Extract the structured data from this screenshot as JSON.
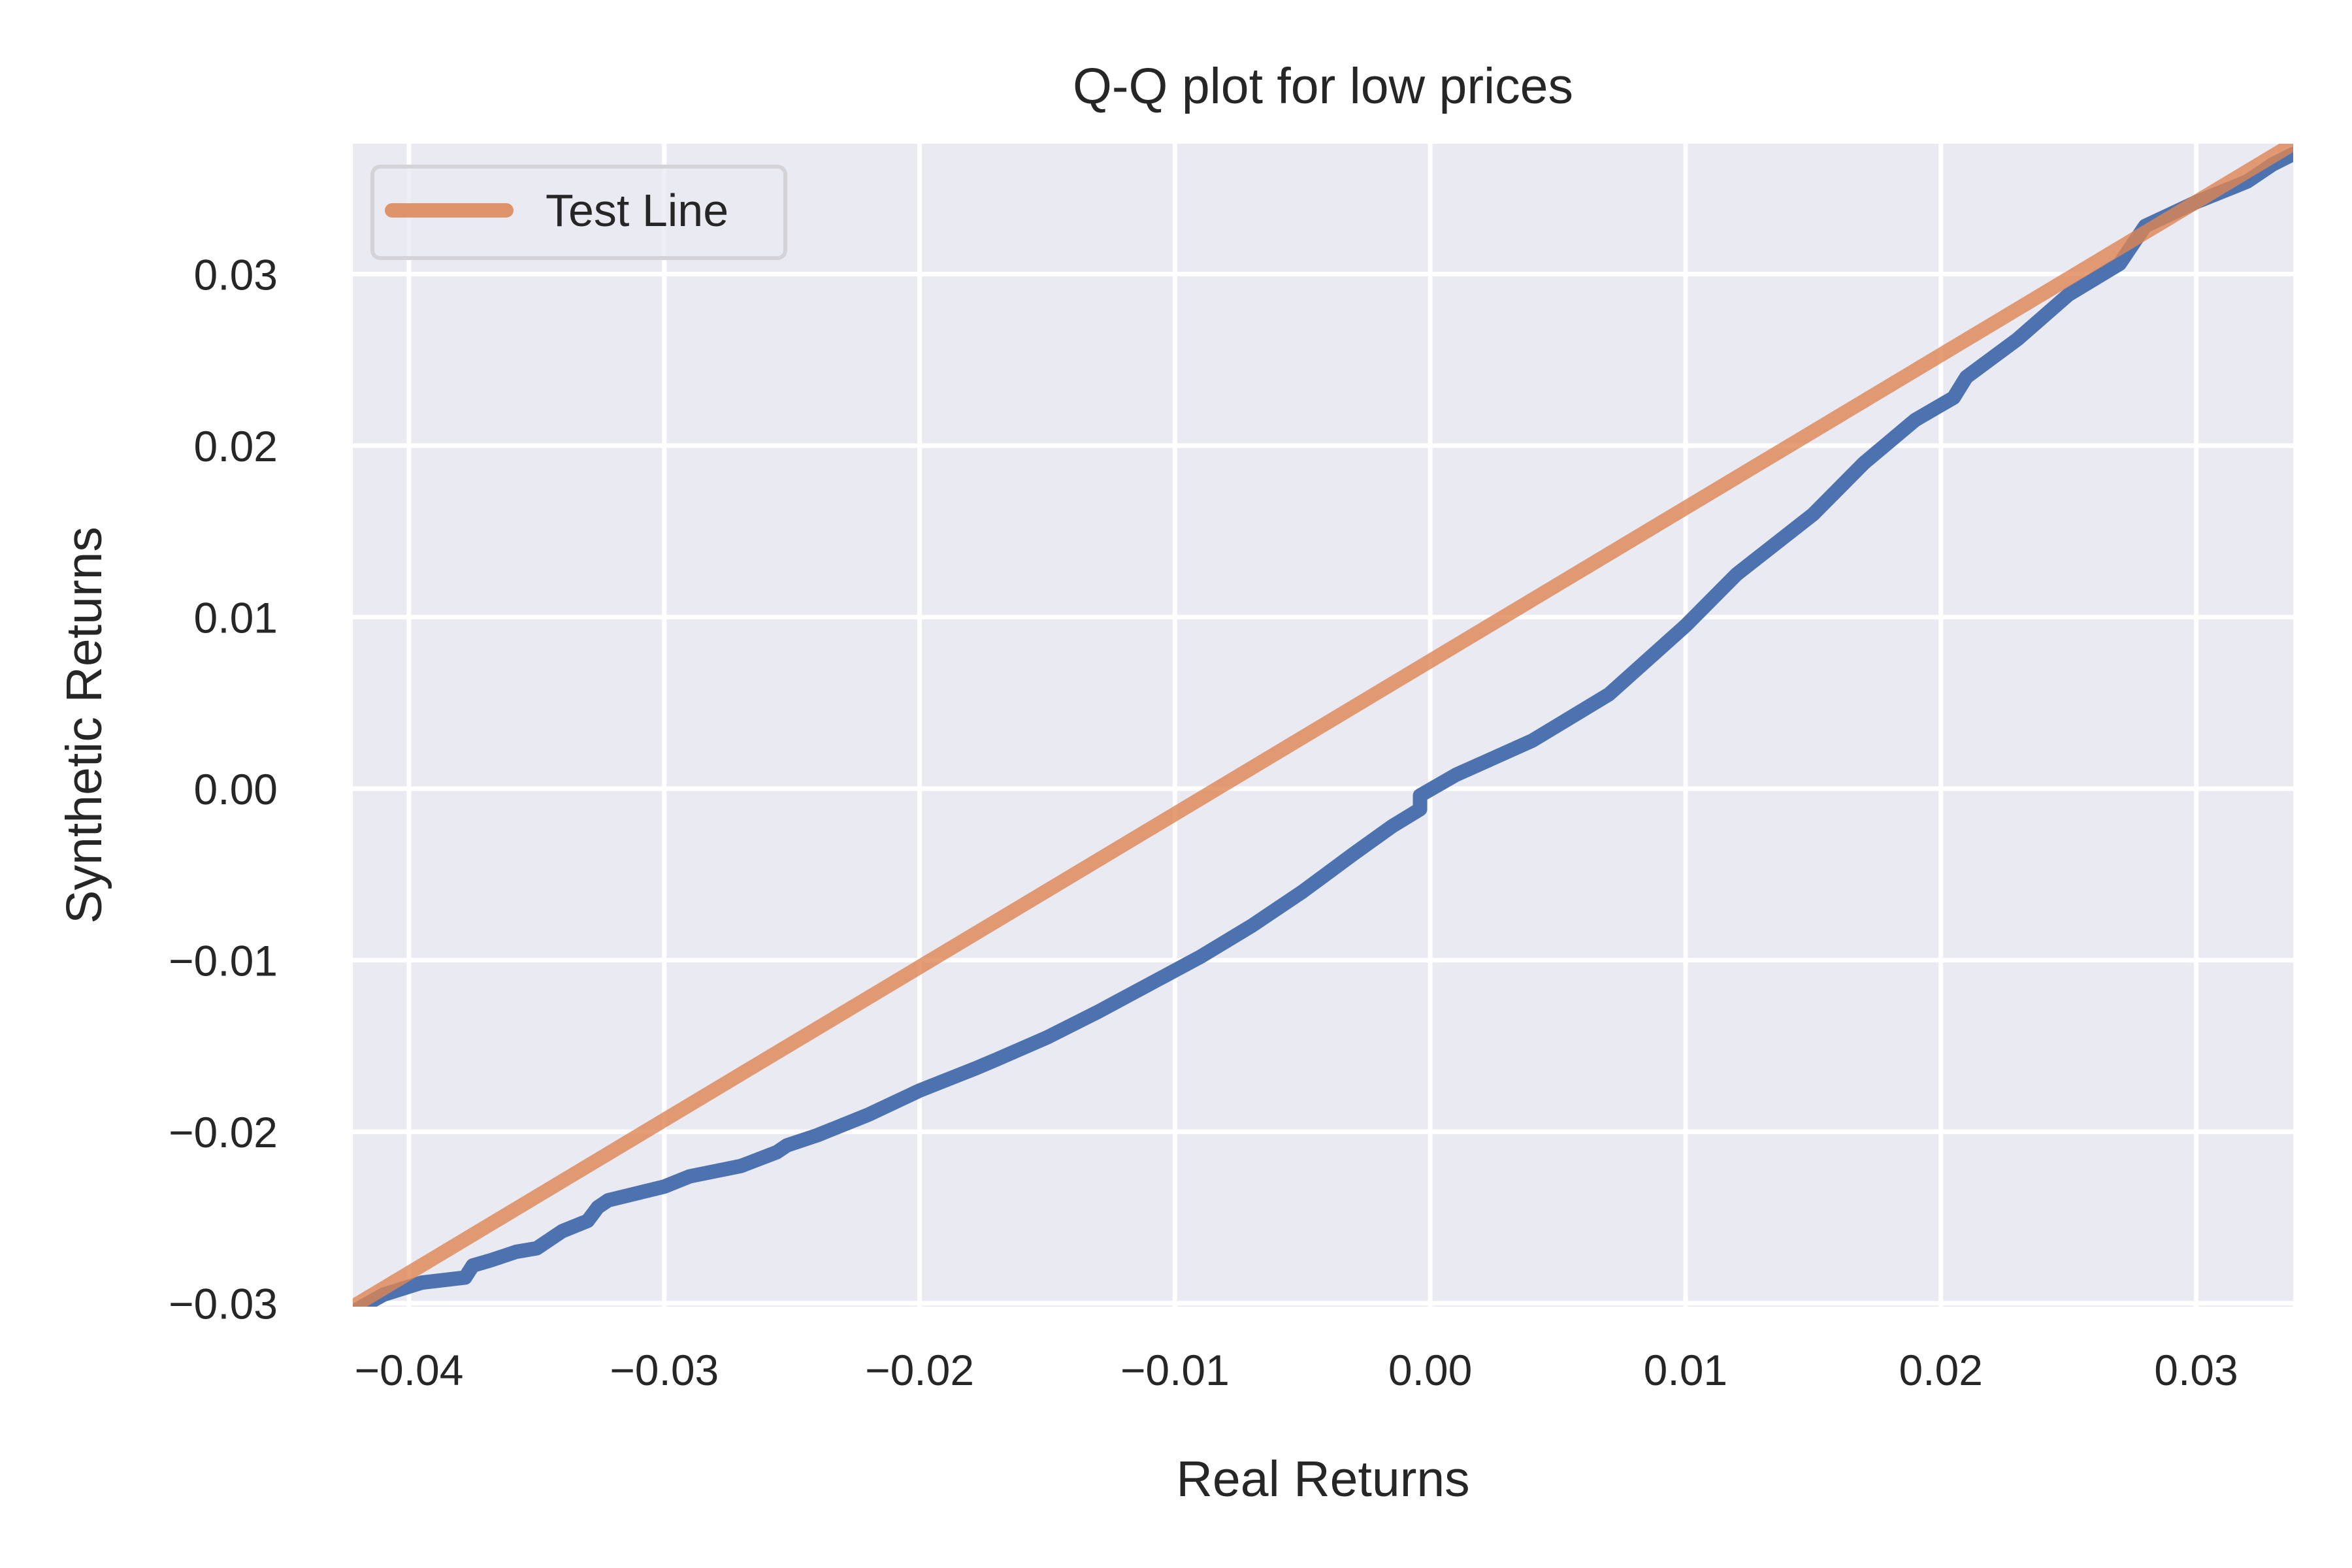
{
  "chart_data": {
    "type": "line",
    "title": "Q-Q plot for low prices",
    "xlabel": "Real Returns",
    "ylabel": "Synthetic Returns",
    "xlim": [
      -0.0422,
      0.0338
    ],
    "ylim": [
      -0.0302,
      0.0376
    ],
    "xticks": [
      -0.04,
      -0.03,
      -0.02,
      -0.01,
      0.0,
      0.01,
      0.02,
      0.03
    ],
    "xtick_labels": [
      "−0.04",
      "−0.03",
      "−0.02",
      "−0.01",
      "0.00",
      "0.01",
      "0.02",
      "0.03"
    ],
    "yticks": [
      -0.03,
      -0.02,
      -0.01,
      0.0,
      0.01,
      0.02,
      0.03
    ],
    "ytick_labels": [
      "−0.03",
      "−0.02",
      "−0.01",
      "0.00",
      "0.01",
      "0.02",
      "0.03"
    ],
    "grid": true,
    "legend": {
      "placement": "top-left",
      "entries": [
        "Test Line"
      ]
    },
    "colors": {
      "background": "#eaeaf2",
      "grid": "#ffffff",
      "qq": "#4c72b0",
      "test_line": "#dd8452"
    },
    "series": [
      {
        "id": "qq",
        "x": [
          -0.0422,
          -0.041,
          -0.0395,
          -0.0378,
          -0.0375,
          -0.0368,
          -0.0358,
          -0.035,
          -0.034,
          -0.033,
          -0.0326,
          -0.0322,
          -0.03,
          -0.029,
          -0.027,
          -0.0256,
          -0.0252,
          -0.024,
          -0.022,
          -0.02,
          -0.0178,
          -0.017,
          -0.015,
          -0.013,
          -0.011,
          -0.009,
          -0.007,
          -0.005,
          -0.003,
          -0.0015,
          -0.0004,
          -0.0004,
          0.001,
          0.004,
          0.007,
          0.01,
          0.012,
          0.015,
          0.017,
          0.019,
          0.0205,
          0.021,
          0.023,
          0.025,
          0.027,
          0.028,
          0.03,
          0.032,
          0.033,
          0.0338
        ],
        "y": [
          -0.0305,
          -0.0295,
          -0.0288,
          -0.0285,
          -0.0278,
          -0.0275,
          -0.027,
          -0.0268,
          -0.0258,
          -0.0252,
          -0.0244,
          -0.024,
          -0.0232,
          -0.0226,
          -0.022,
          -0.0212,
          -0.0208,
          -0.0202,
          -0.019,
          -0.0176,
          -0.0163,
          -0.0158,
          -0.0145,
          -0.013,
          -0.0114,
          -0.0098,
          -0.008,
          -0.006,
          -0.0038,
          -0.0022,
          -0.0012,
          -0.0004,
          0.0008,
          0.0028,
          0.0055,
          0.0095,
          0.0125,
          0.016,
          0.019,
          0.0215,
          0.0228,
          0.024,
          0.0262,
          0.0288,
          0.0306,
          0.0328,
          0.0342,
          0.0354,
          0.0364,
          0.037
        ]
      },
      {
        "id": "test_line",
        "name": "Test Line",
        "x": [
          -0.0422,
          0.0338
        ],
        "y": [
          -0.0302,
          0.0376
        ]
      }
    ]
  }
}
